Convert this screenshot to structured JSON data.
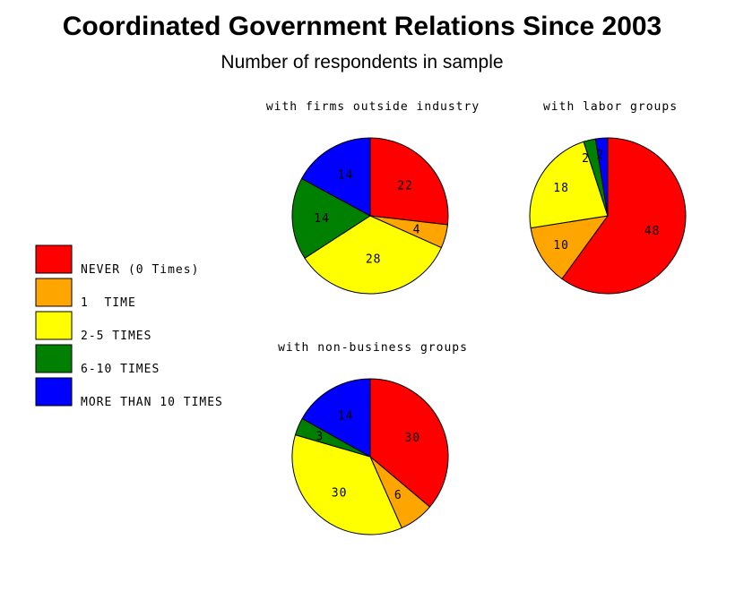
{
  "title": "Coordinated Government Relations Since 2003",
  "subtitle": "Number of respondents in sample",
  "legend": {
    "position": "left",
    "items": [
      {
        "label": "NEVER (0 Times)",
        "color": "#ff0000"
      },
      {
        "label": "1  TIME",
        "color": "#ffa500"
      },
      {
        "label": "2-5 TIMES",
        "color": "#ffff00"
      },
      {
        "label": "6-10 TIMES",
        "color": "#008000"
      },
      {
        "label": "MORE THAN 10 TIMES",
        "color": "#0000ff"
      }
    ]
  },
  "chart_data": [
    {
      "type": "pie",
      "title": "with firms outside industry",
      "categories": [
        "NEVER (0 Times)",
        "1  TIME",
        "2-5 TIMES",
        "6-10 TIMES",
        "MORE THAN 10 TIMES"
      ],
      "values": [
        22,
        4,
        28,
        14,
        14
      ],
      "labels": [
        "22",
        "4",
        "28",
        "14",
        "14"
      ]
    },
    {
      "type": "pie",
      "title": "with labor groups",
      "categories": [
        "NEVER (0 Times)",
        "1  TIME",
        "2-5 TIMES",
        "6-10 TIMES",
        "MORE THAN 10 TIMES"
      ],
      "values": [
        48,
        10,
        18,
        2,
        2
      ],
      "labels": [
        "48",
        "10",
        "18",
        "2",
        "2"
      ]
    },
    {
      "type": "pie",
      "title": "with non-business groups",
      "categories": [
        "NEVER (0 Times)",
        "1  TIME",
        "2-5 TIMES",
        "6-10 TIMES",
        "MORE THAN 10 TIMES"
      ],
      "values": [
        30,
        6,
        30,
        3,
        14
      ],
      "labels": [
        "30",
        "6",
        "30",
        "3",
        "14"
      ]
    }
  ]
}
